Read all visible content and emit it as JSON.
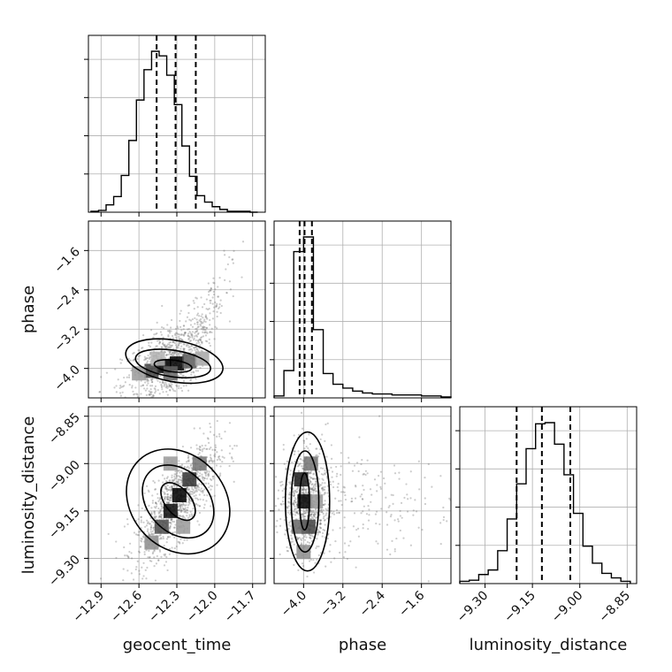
{
  "chart_data": {
    "type": "corner",
    "parameters": [
      "geocent_time",
      "phase",
      "luminosity_distance"
    ],
    "axis_labels": {
      "geocent_time": "geocent_time",
      "phase": "phase",
      "luminosity_distance": "luminosity_distance"
    },
    "ranges": {
      "geocent_time": [
        -13.0,
        -11.6
      ],
      "phase": [
        -4.6,
        -1.0
      ],
      "luminosity_distance": [
        -9.38,
        -8.82
      ]
    },
    "ticks": {
      "geocent_time": [
        {
          "value": -12.9,
          "label": "−12.9"
        },
        {
          "value": -12.6,
          "label": "−12.6"
        },
        {
          "value": -12.3,
          "label": "−12.3"
        },
        {
          "value": -12.0,
          "label": "−12.0"
        },
        {
          "value": -11.7,
          "label": "−11.7"
        }
      ],
      "phase": [
        {
          "value": -4.0,
          "label": "−4.0"
        },
        {
          "value": -3.2,
          "label": "−3.2"
        },
        {
          "value": -2.4,
          "label": "−2.4"
        },
        {
          "value": -1.6,
          "label": "−1.6"
        }
      ],
      "luminosity_distance": [
        {
          "value": -9.3,
          "label": "−9.30"
        },
        {
          "value": -9.15,
          "label": "−9.15"
        },
        {
          "value": -9.0,
          "label": "−9.00"
        },
        {
          "value": -8.85,
          "label": "−8.85"
        }
      ]
    },
    "quantiles": {
      "geocent_time": [
        -12.46,
        -12.31,
        -12.15
      ],
      "phase": [
        -4.08,
        -3.98,
        -3.83
      ],
      "luminosity_distance": [
        -9.2,
        -9.12,
        -9.03
      ]
    },
    "histograms": {
      "geocent_time": {
        "bins": [
          -12.98,
          -12.92,
          -12.86,
          -12.8,
          -12.74,
          -12.68,
          -12.62,
          -12.56,
          -12.5,
          -12.44,
          -12.38,
          -12.32,
          -12.26,
          -12.2,
          -12.14,
          -12.08,
          -12.02,
          -11.96,
          -11.9,
          -11.84,
          -11.78,
          -11.72,
          -11.66
        ],
        "counts": [
          1,
          2,
          8,
          17,
          40,
          78,
          122,
          155,
          175,
          170,
          149,
          117,
          72,
          39,
          18,
          11,
          6,
          3,
          1,
          1,
          1,
          0
        ]
      },
      "phase": {
        "bins": [
          -4.6,
          -4.4,
          -4.2,
          -4.0,
          -3.8,
          -3.6,
          -3.4,
          -3.2,
          -3.0,
          -2.8,
          -2.6,
          -2.4,
          -2.2,
          -2.0,
          -1.8,
          -1.6,
          -1.4,
          -1.2,
          -1.0
        ],
        "counts": [
          2,
          28,
          150,
          165,
          70,
          25,
          14,
          10,
          7,
          5,
          4,
          4,
          3,
          3,
          3,
          2,
          2,
          1
        ]
      },
      "luminosity_distance": {
        "bins": [
          -9.38,
          -9.35,
          -9.32,
          -9.29,
          -9.26,
          -9.23,
          -9.2,
          -9.17,
          -9.14,
          -9.11,
          -9.08,
          -9.05,
          -9.02,
          -8.99,
          -8.96,
          -8.93,
          -8.9,
          -8.87,
          -8.84
        ],
        "counts": [
          2,
          3,
          8,
          12,
          29,
          57,
          88,
          119,
          141,
          142,
          123,
          96,
          62,
          33,
          18,
          9,
          5,
          2
        ]
      }
    },
    "pairs": [
      {
        "x": "geocent_time",
        "y": "phase",
        "density": [
          {
            "x": -12.4,
            "y": -3.95,
            "w": 1.0
          },
          {
            "x": -12.3,
            "y": -3.9,
            "w": 1.0
          },
          {
            "x": -12.5,
            "y": -4.05,
            "w": 0.75
          },
          {
            "x": -12.2,
            "y": -3.85,
            "w": 0.65
          },
          {
            "x": -12.35,
            "y": -4.1,
            "w": 0.6
          },
          {
            "x": -12.6,
            "y": -4.1,
            "w": 0.4
          },
          {
            "x": -12.1,
            "y": -3.8,
            "w": 0.35
          },
          {
            "x": -12.45,
            "y": -3.8,
            "w": 0.3
          }
        ],
        "contours": [
          {
            "cx": -12.33,
            "cy": -3.95,
            "rx": 0.15,
            "ry": 0.12,
            "tilt": 0.12
          },
          {
            "cx": -12.33,
            "cy": -3.9,
            "rx": 0.3,
            "ry": 0.27,
            "tilt": 0.15
          },
          {
            "cx": -12.32,
            "cy": -3.85,
            "rx": 0.39,
            "ry": 0.42,
            "tilt": 0.18
          }
        ],
        "scatter": {
          "n": 900,
          "cx": -12.33,
          "cy": -3.85,
          "sx": 0.2,
          "sy": 0.45,
          "corr": 0.55,
          "skew_y": 0.6
        }
      },
      {
        "x": "geocent_time",
        "y": "luminosity_distance",
        "density": [
          {
            "x": -12.28,
            "y": -9.1,
            "w": 1.0
          },
          {
            "x": -12.35,
            "y": -9.15,
            "w": 0.95
          },
          {
            "x": -12.2,
            "y": -9.05,
            "w": 0.8
          },
          {
            "x": -12.42,
            "y": -9.2,
            "w": 0.7
          },
          {
            "x": -12.12,
            "y": -9.0,
            "w": 0.55
          },
          {
            "x": -12.5,
            "y": -9.25,
            "w": 0.45
          },
          {
            "x": -12.25,
            "y": -9.2,
            "w": 0.4
          },
          {
            "x": -12.35,
            "y": -9.0,
            "w": 0.4
          }
        ],
        "contours": [
          {
            "cx": -12.29,
            "cy": -9.12,
            "rx": 0.1,
            "ry": 0.07,
            "tilt": -0.7
          },
          {
            "cx": -12.29,
            "cy": -9.12,
            "rx": 0.24,
            "ry": 0.13,
            "tilt": -0.75
          },
          {
            "cx": -12.29,
            "cy": -9.12,
            "rx": 0.37,
            "ry": 0.18,
            "tilt": -0.75
          }
        ],
        "scatter": {
          "n": 1100,
          "cx": -12.3,
          "cy": -9.12,
          "sx": 0.16,
          "sy": 0.09,
          "corr": 0.75,
          "skew_y": 0
        }
      },
      {
        "x": "phase",
        "y": "luminosity_distance",
        "density": [
          {
            "x": -3.98,
            "y": -9.12,
            "w": 1.0
          },
          {
            "x": -4.05,
            "y": -9.05,
            "w": 0.9
          },
          {
            "x": -3.9,
            "y": -9.2,
            "w": 0.75
          },
          {
            "x": -4.1,
            "y": -9.2,
            "w": 0.6
          },
          {
            "x": -3.85,
            "y": -9.0,
            "w": 0.55
          },
          {
            "x": -4.0,
            "y": -9.28,
            "w": 0.45
          },
          {
            "x": -3.75,
            "y": -9.12,
            "w": 0.4
          }
        ],
        "contours": [
          {
            "cx": -3.98,
            "cy": -9.12,
            "rx": 0.1,
            "ry": 0.09,
            "tilt": 0
          },
          {
            "cx": -3.97,
            "cy": -9.12,
            "rx": 0.28,
            "ry": 0.16,
            "tilt": 0
          },
          {
            "cx": -3.92,
            "cy": -9.12,
            "rx": 0.45,
            "ry": 0.22,
            "tilt": 0
          }
        ],
        "scatter": {
          "n": 1000,
          "cx": -3.95,
          "cy": -9.12,
          "sx": 0.22,
          "sy": 0.085,
          "corr": 0.0,
          "skew_x": 0.9
        }
      }
    ],
    "grid": true,
    "colors": {
      "line": "#000000",
      "grid": "#b0b0b0",
      "scatter": "#6e6e6e",
      "density_max": "#000000"
    }
  }
}
